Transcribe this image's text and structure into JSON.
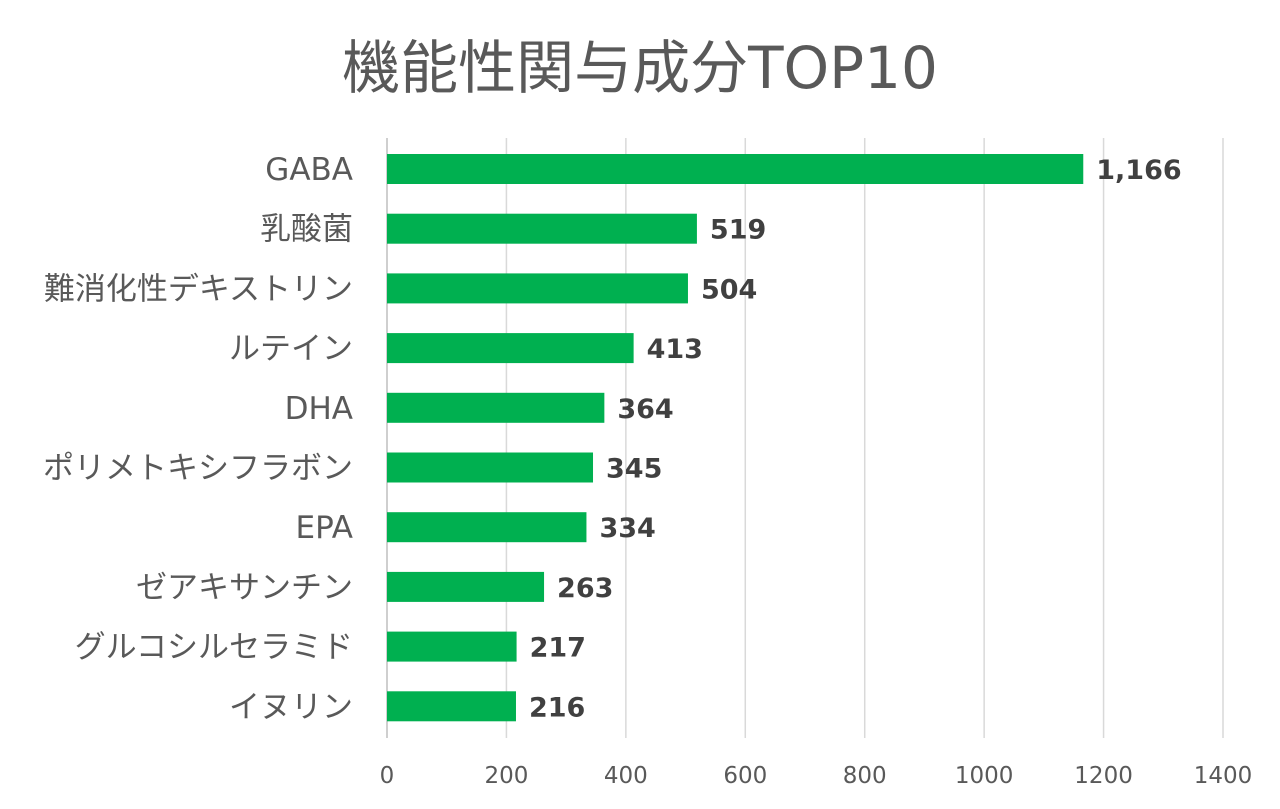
{
  "chart_data": {
    "type": "bar",
    "orientation": "horizontal",
    "title": "機能性関与成分TOP10",
    "categories": [
      "GABA",
      "乳酸菌",
      "難消化性デキストリン",
      "ルテイン",
      "DHA",
      "ポリメトキシフラボン",
      "EPA",
      "ゼアキサンチン",
      "グルコシルセラミド",
      "イヌリン"
    ],
    "values": [
      1166,
      519,
      504,
      413,
      364,
      345,
      334,
      263,
      217,
      216
    ],
    "value_labels": [
      "1,166",
      "519",
      "504",
      "413",
      "364",
      "345",
      "334",
      "263",
      "217",
      "216"
    ],
    "xlim": [
      0,
      1400
    ],
    "x_ticks": [
      0,
      200,
      400,
      600,
      800,
      1000,
      1200,
      1400
    ],
    "x_tick_labels": [
      "0",
      "200",
      "400",
      "600",
      "800",
      "1000",
      "1200",
      "1400"
    ],
    "grid": "vertical",
    "legend": "none",
    "bar_color": "#00b050"
  }
}
